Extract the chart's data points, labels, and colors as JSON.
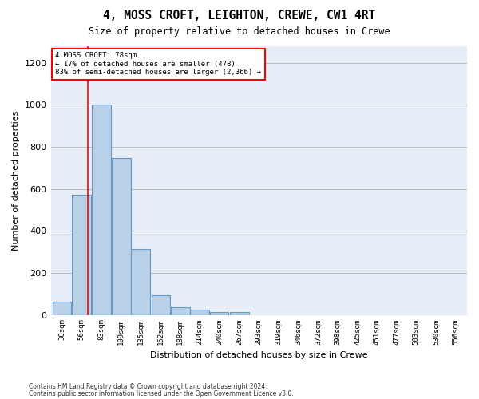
{
  "title1": "4, MOSS CROFT, LEIGHTON, CREWE, CW1 4RT",
  "title2": "Size of property relative to detached houses in Crewe",
  "xlabel": "Distribution of detached houses by size in Crewe",
  "ylabel": "Number of detached properties",
  "footer1": "Contains HM Land Registry data © Crown copyright and database right 2024.",
  "footer2": "Contains public sector information licensed under the Open Government Licence v3.0.",
  "annotation_line1": "4 MOSS CROFT: 78sqm",
  "annotation_line2": "← 17% of detached houses are smaller (478)",
  "annotation_line3": "83% of semi-detached houses are larger (2,366) →",
  "bar_color": "#b8d0e8",
  "bar_edge_color": "#6699cc",
  "red_line_x": 78,
  "categories": [
    "30sqm",
    "56sqm",
    "83sqm",
    "109sqm",
    "135sqm",
    "162sqm",
    "188sqm",
    "214sqm",
    "240sqm",
    "267sqm",
    "293sqm",
    "319sqm",
    "346sqm",
    "372sqm",
    "398sqm",
    "425sqm",
    "451sqm",
    "477sqm",
    "503sqm",
    "530sqm",
    "556sqm"
  ],
  "bin_left_edges": [
    30,
    56,
    83,
    109,
    135,
    162,
    188,
    214,
    240,
    267,
    293,
    319,
    346,
    372,
    398,
    425,
    451,
    477,
    503,
    530,
    556
  ],
  "values": [
    62,
    570,
    1000,
    745,
    315,
    95,
    38,
    25,
    12,
    15,
    0,
    0,
    0,
    0,
    0,
    0,
    0,
    0,
    0,
    0,
    0
  ],
  "ylim": [
    0,
    1280
  ],
  "yticks": [
    0,
    200,
    400,
    600,
    800,
    1000,
    1200
  ],
  "background_color": "#e8eef8",
  "grid_color": "#bbbbbb"
}
